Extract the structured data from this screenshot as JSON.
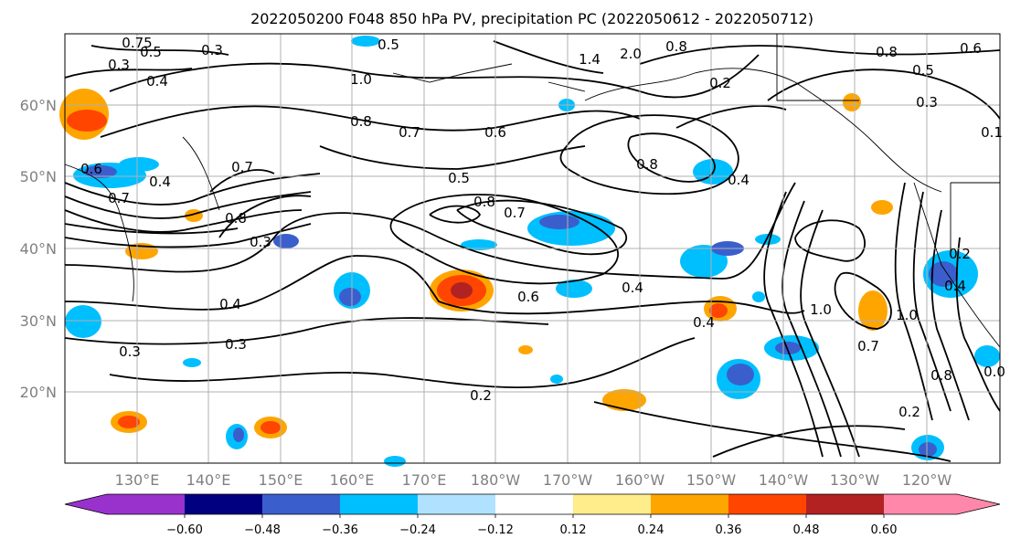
{
  "title": "2022050200 F048 850 hPa PV, precipitation PC (2022050612 - 2022050712)",
  "lat_ticks": [
    "60°N",
    "50°N",
    "40°N",
    "30°N",
    "20°N"
  ],
  "lon_ticks": [
    "130°E",
    "140°E",
    "150°E",
    "160°E",
    "170°E",
    "180°W",
    "170°W",
    "160°W",
    "150°W",
    "140°W",
    "130°W",
    "120°W"
  ],
  "colorbar": {
    "colors": [
      "#9932cc",
      "#000080",
      "#3a5fcd",
      "#00bfff",
      "#b0e2ff",
      "#ffffff",
      "#ffec8b",
      "#ffa500",
      "#ff4500",
      "#b22222",
      "#ff88aa"
    ],
    "tick_labels": [
      "−0.60",
      "−0.48",
      "−0.36",
      "−0.24",
      "−0.12",
      "0.12",
      "0.24",
      "0.36",
      "0.48",
      "0.60"
    ]
  },
  "contour_labels": [
    "0.5",
    "0.8",
    "1.4",
    "2.0",
    "0.8",
    "0.6",
    "0.75",
    "0.3",
    "0.3",
    "0.5",
    "0.4",
    "1.0",
    "0.2",
    "0.5",
    "0.3",
    "0.8",
    "0.7",
    "0.6",
    "0.1",
    "0.6",
    "0.4",
    "0.7",
    "0.5",
    "0.4",
    "0.8",
    "0.7",
    "0.8",
    "0.7",
    "0.8",
    "0.3",
    "0.4",
    "0.6",
    "0.4",
    "0.4",
    "0.2",
    "1.0",
    "0.4",
    "1.0",
    "0.7",
    "0.3",
    "0.3",
    "0.8",
    "0.2",
    "0.2",
    "0.0"
  ],
  "colors": {
    "contour": "#000000",
    "grid": "#b0b0b0",
    "axis_text": "#808080"
  }
}
